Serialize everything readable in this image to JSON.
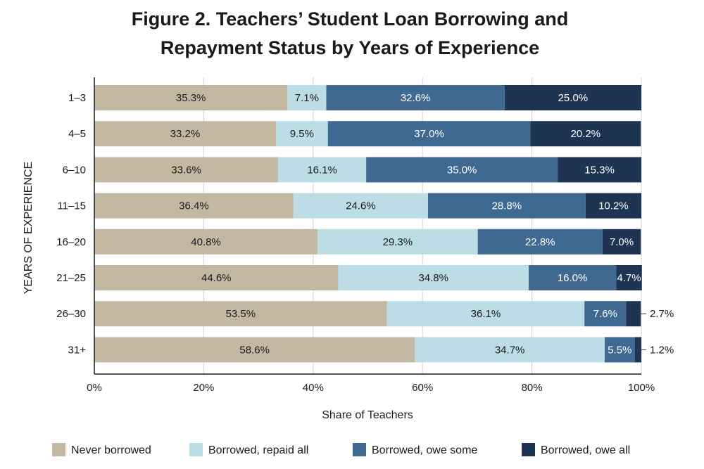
{
  "chart_data": {
    "type": "bar",
    "orientation": "horizontal",
    "stacked": true,
    "title_lines": [
      "Figure 2. Teachers’ Student Loan Borrowing and",
      "Repayment Status by Years of Experience"
    ],
    "xlabel": "Share of Teachers",
    "ylabel": "YEARS OF EXPERIENCE",
    "xlim": [
      0,
      100
    ],
    "x_ticks": [
      "0%",
      "20%",
      "40%",
      "60%",
      "80%",
      "100%"
    ],
    "grid": true,
    "legend_position": "bottom",
    "categories": [
      "1–3",
      "4–5",
      "6–10",
      "11–15",
      "16–20",
      "21–25",
      "26–30",
      "31+"
    ],
    "series": [
      {
        "name": "Never borrowed",
        "color": "#c3b8a2",
        "text_color": "#1a1a1a",
        "values": [
          35.3,
          33.2,
          33.6,
          36.4,
          40.8,
          44.6,
          53.5,
          58.6
        ],
        "labels": [
          "35.3%",
          "33.2%",
          "33.6%",
          "36.4%",
          "40.8%",
          "44.6%",
          "53.5%",
          "58.6%"
        ]
      },
      {
        "name": "Borrowed, repaid all",
        "color": "#bcdde6",
        "text_color": "#1a1a1a",
        "values": [
          7.1,
          9.5,
          16.1,
          24.6,
          29.3,
          34.8,
          36.1,
          34.7
        ],
        "labels": [
          "7.1%",
          "9.5%",
          "16.1%",
          "24.6%",
          "29.3%",
          "34.8%",
          "36.1%",
          "34.7%"
        ]
      },
      {
        "name": "Borrowed, owe some",
        "color": "#3f6990",
        "text_color": "#ffffff",
        "values": [
          32.6,
          37.0,
          35.0,
          28.8,
          22.8,
          16.0,
          7.6,
          5.5
        ],
        "labels": [
          "32.6%",
          "37.0%",
          "35.0%",
          "28.8%",
          "22.8%",
          "16.0%",
          "7.6%",
          "5.5%"
        ]
      },
      {
        "name": "Borrowed, owe all",
        "color": "#1d3552",
        "text_color": "#ffffff",
        "values": [
          25.0,
          20.2,
          15.3,
          10.2,
          7.0,
          4.7,
          2.7,
          1.2
        ],
        "labels": [
          "25.0%",
          "20.2%",
          "15.3%",
          "10.2%",
          "7.0%",
          "4.7%",
          "2.7%",
          "1.2%"
        ]
      }
    ]
  }
}
